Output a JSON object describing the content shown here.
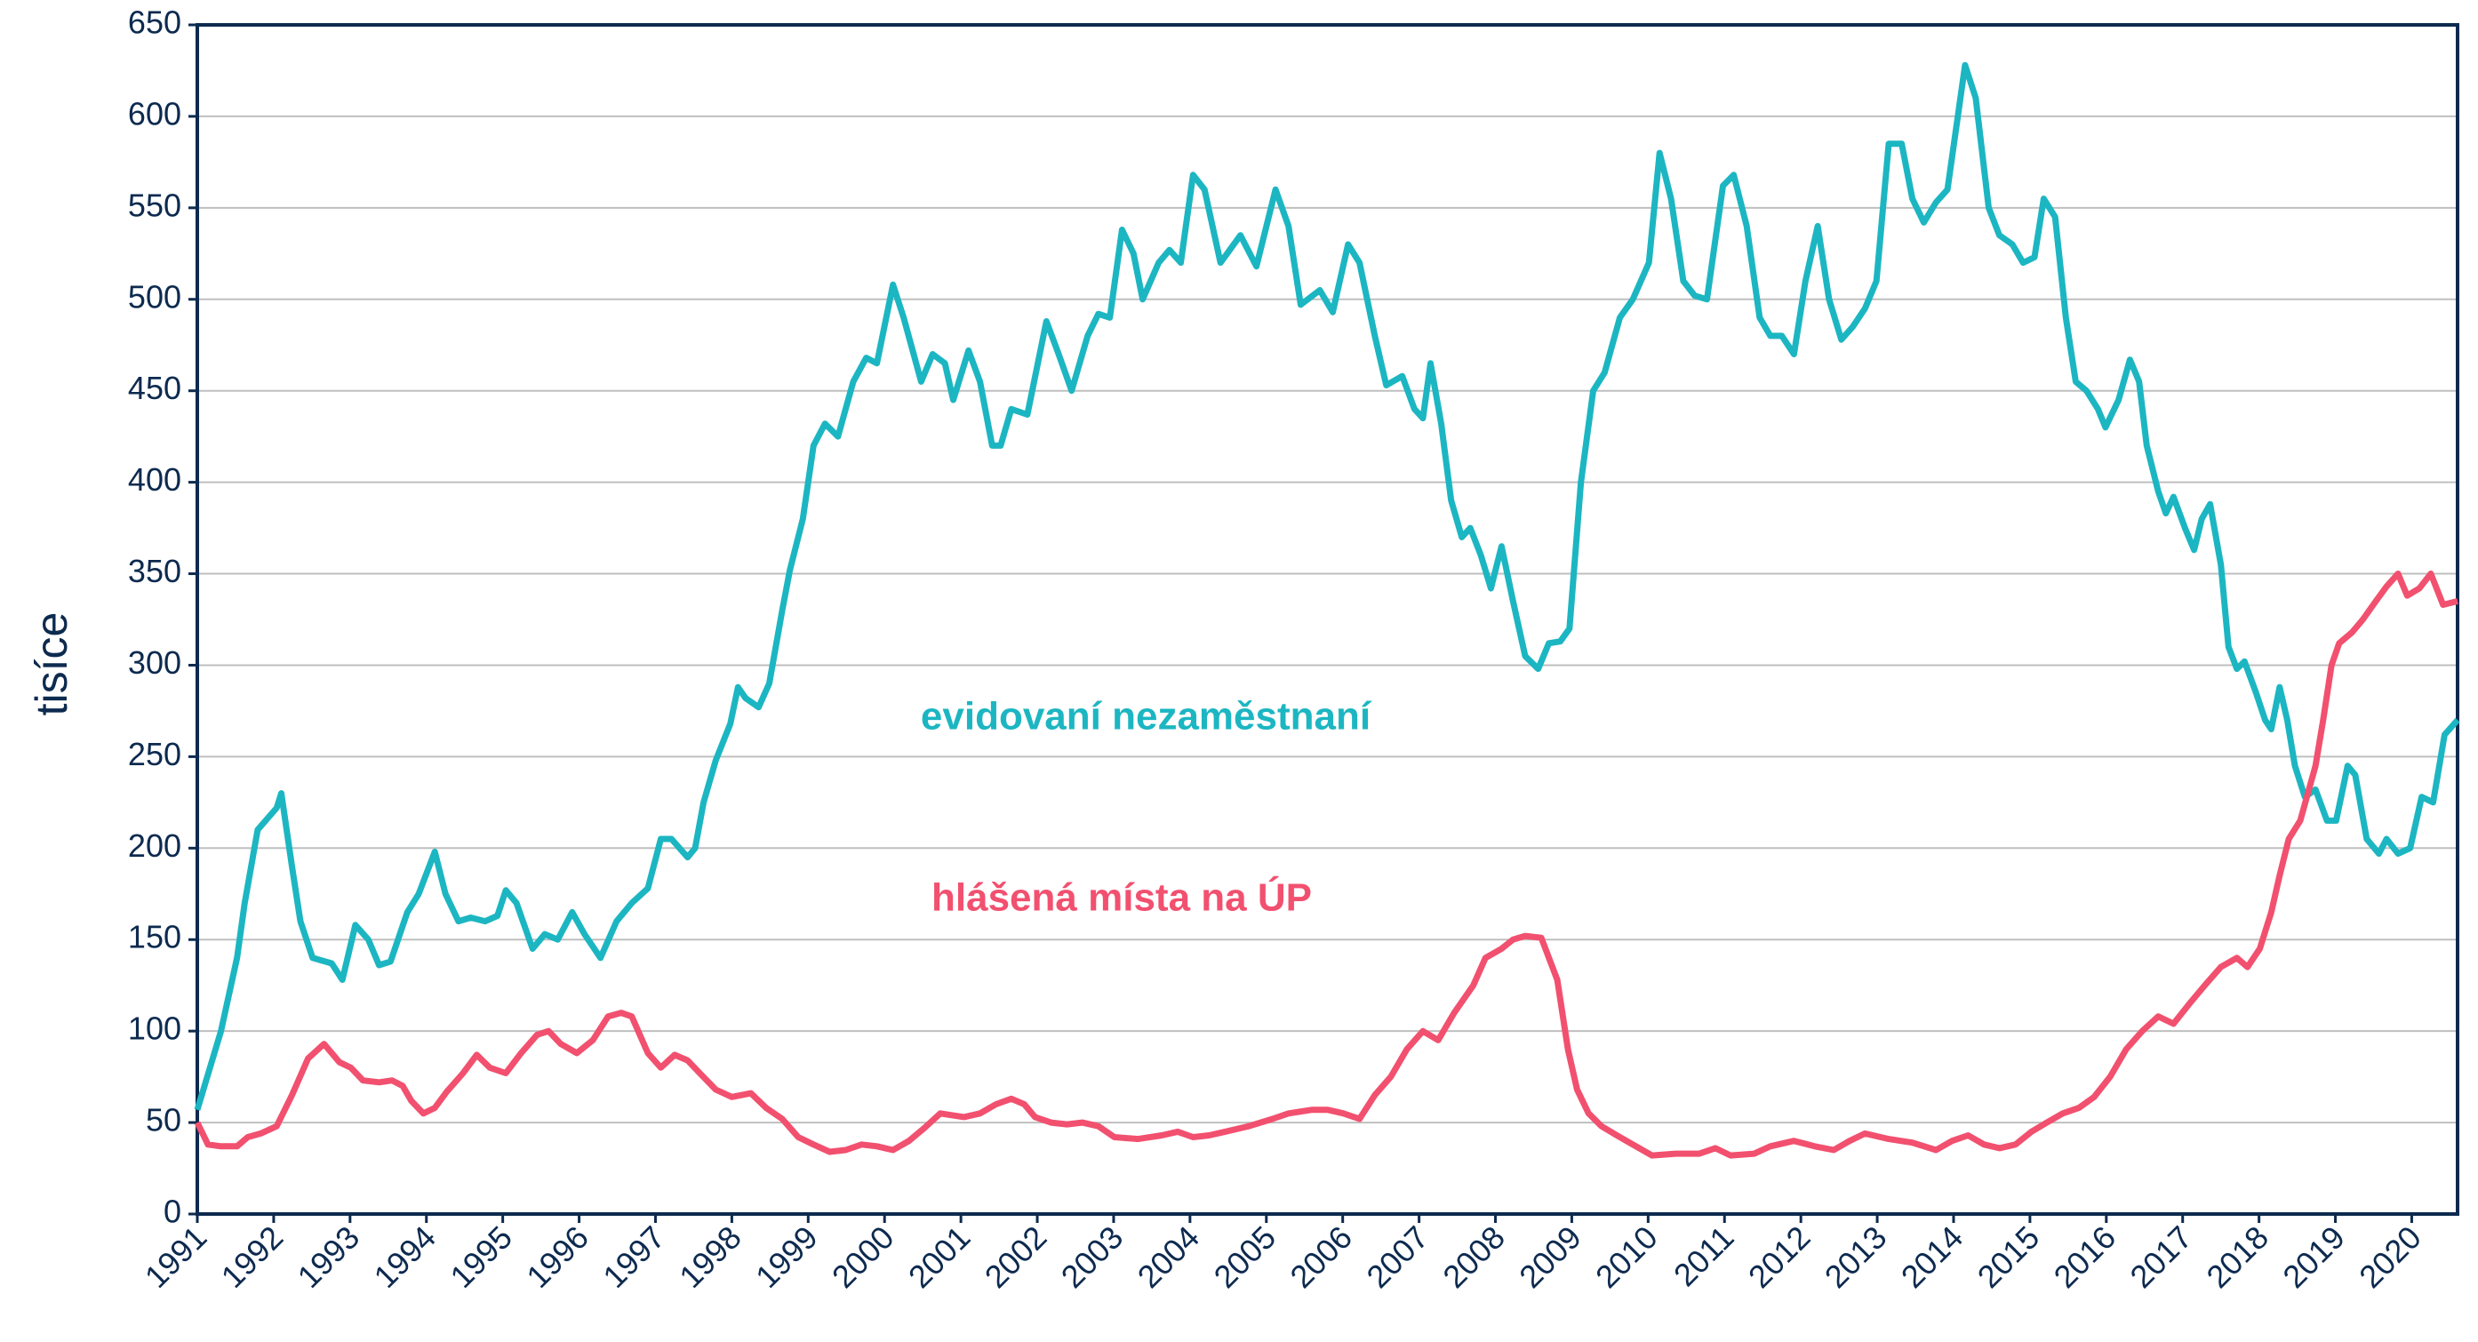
{
  "chart_data": {
    "type": "line",
    "y_label": "tisíce",
    "xlim": [
      1991,
      2020.6
    ],
    "xticks": [
      1991,
      1992,
      1993,
      1994,
      1995,
      1996,
      1997,
      1998,
      1999,
      2000,
      2001,
      2002,
      2003,
      2004,
      2005,
      2006,
      2007,
      2008,
      2009,
      2010,
      2011,
      2012,
      2013,
      2014,
      2015,
      2016,
      2017,
      2018,
      2019,
      2020
    ],
    "ylim": [
      0,
      650
    ],
    "yticks": [
      0,
      50,
      100,
      150,
      200,
      250,
      300,
      350,
      400,
      450,
      500,
      550,
      600,
      650
    ],
    "grid": true,
    "series": [
      {
        "name": "evidovaní nezaměstnaní",
        "color": "#1cb6c2",
        "x": [
          1991.0,
          1991.31,
          1991.52,
          1991.62,
          1991.79,
          1992.04,
          1992.1,
          1992.24,
          1992.35,
          1992.51,
          1992.76,
          1992.9,
          1993.07,
          1993.24,
          1993.38,
          1993.53,
          1993.75,
          1993.9,
          1994.11,
          1994.25,
          1994.42,
          1994.58,
          1994.77,
          1994.93,
          1995.04,
          1995.18,
          1995.39,
          1995.55,
          1995.72,
          1995.91,
          1996.07,
          1996.28,
          1996.49,
          1996.69,
          1996.9,
          1997.07,
          1997.21,
          1997.42,
          1997.52,
          1997.63,
          1997.79,
          1997.98,
          1998.08,
          1998.18,
          1998.35,
          1998.49,
          1998.66,
          1998.76,
          1998.93,
          1999.07,
          1999.22,
          1999.39,
          1999.59,
          1999.76,
          1999.9,
          2000.11,
          2000.25,
          2000.48,
          2000.63,
          2000.79,
          2000.9,
          2001.1,
          2001.25,
          2001.41,
          2001.52,
          2001.66,
          2001.87,
          2002.12,
          2002.28,
          2002.45,
          2002.66,
          2002.8,
          2002.95,
          2003.11,
          2003.26,
          2003.38,
          2003.59,
          2003.73,
          2003.88,
          2004.04,
          2004.19,
          2004.4,
          2004.66,
          2004.87,
          2005.12,
          2005.29,
          2005.45,
          2005.7,
          2005.87,
          2006.07,
          2006.22,
          2006.42,
          2006.57,
          2006.78,
          2006.94,
          2007.05,
          2007.15,
          2007.29,
          2007.42,
          2007.56,
          2007.67,
          2007.81,
          2007.94,
          2008.08,
          2008.23,
          2008.39,
          2008.56,
          2008.7,
          2008.85,
          2008.97,
          2009.12,
          2009.28,
          2009.43,
          2009.63,
          2009.8,
          2010.01,
          2010.15,
          2010.3,
          2010.46,
          2010.61,
          2010.77,
          2010.98,
          2011.12,
          2011.29,
          2011.46,
          2011.6,
          2011.75,
          2011.91,
          2012.06,
          2012.22,
          2012.37,
          2012.53,
          2012.68,
          2012.84,
          2012.99,
          2013.15,
          2013.32,
          2013.46,
          2013.61,
          2013.77,
          2013.92,
          2014.15,
          2014.29,
          2014.46,
          2014.6,
          2014.77,
          2014.91,
          2015.06,
          2015.18,
          2015.33,
          2015.47,
          2015.6,
          2015.74,
          2015.89,
          2015.99,
          2016.16,
          2016.31,
          2016.43,
          2016.53,
          2016.68,
          2016.78,
          2016.88,
          2017.03,
          2017.15,
          2017.25,
          2017.36,
          2017.5,
          2017.6,
          2017.71,
          2017.81,
          2017.96,
          2018.08,
          2018.16,
          2018.27,
          2018.37,
          2018.47,
          2018.6,
          2018.74,
          2018.89,
          2019.01,
          2019.16,
          2019.26,
          2019.41,
          2019.57,
          2019.67,
          2019.82,
          2019.98,
          2020.13,
          2020.28,
          2020.43,
          2020.6
        ],
        "values": [
          57,
          100,
          140,
          170,
          210,
          222,
          230,
          190,
          160,
          140,
          137,
          128,
          158,
          150,
          136,
          138,
          165,
          175,
          198,
          175,
          160,
          162,
          160,
          163,
          177,
          170,
          145,
          153,
          150,
          165,
          153,
          140,
          160,
          170,
          178,
          205,
          205,
          195,
          200,
          225,
          248,
          268,
          288,
          282,
          277,
          290,
          330,
          352,
          380,
          420,
          432,
          425,
          455,
          468,
          465,
          508,
          490,
          455,
          470,
          465,
          445,
          472,
          455,
          420,
          420,
          440,
          437,
          488,
          470,
          450,
          480,
          492,
          490,
          538,
          525,
          500,
          520,
          527,
          520,
          568,
          560,
          520,
          535,
          518,
          560,
          540,
          497,
          505,
          493,
          530,
          520,
          480,
          453,
          458,
          440,
          435,
          465,
          432,
          390,
          370,
          375,
          360,
          342,
          365,
          335,
          305,
          298,
          312,
          313,
          320,
          400,
          450,
          460,
          490,
          500,
          520,
          580,
          555,
          510,
          502,
          500,
          562,
          568,
          540,
          490,
          480,
          480,
          470,
          510,
          540,
          500,
          478,
          485,
          495,
          510,
          585,
          585,
          555,
          542,
          553,
          560,
          628,
          610,
          550,
          535,
          530,
          520,
          523,
          555,
          545,
          490,
          455,
          450,
          440,
          430,
          445,
          467,
          455,
          420,
          395,
          383,
          392,
          375,
          363,
          380,
          388,
          355,
          310,
          298,
          302,
          285,
          270,
          265,
          288,
          270,
          245,
          228,
          232,
          215,
          215,
          245,
          240,
          205,
          197,
          205,
          197,
          200,
          228,
          225,
          262,
          270
        ]
      },
      {
        "name": "hlášená místa na ÚP",
        "color": "#f2506f",
        "x": [
          1991.0,
          1991.14,
          1991.31,
          1991.52,
          1991.66,
          1991.83,
          1992.04,
          1992.24,
          1992.45,
          1992.66,
          1992.86,
          1993.01,
          1993.17,
          1993.38,
          1993.55,
          1993.69,
          1993.8,
          1993.96,
          1994.11,
          1994.27,
          1994.48,
          1994.66,
          1994.83,
          1995.04,
          1995.24,
          1995.45,
          1995.6,
          1995.76,
          1995.97,
          1996.18,
          1996.38,
          1996.55,
          1996.69,
          1996.9,
          1997.07,
          1997.25,
          1997.42,
          1997.58,
          1997.79,
          1998.0,
          1998.25,
          1998.45,
          1998.66,
          1998.87,
          1999.07,
          1999.28,
          1999.49,
          1999.7,
          1999.9,
          2000.11,
          2000.32,
          2000.52,
          2000.73,
          2001.04,
          2001.25,
          2001.46,
          2001.66,
          2001.83,
          2001.97,
          2002.18,
          2002.39,
          2002.59,
          2002.8,
          2003.01,
          2003.32,
          2003.63,
          2003.84,
          2004.04,
          2004.25,
          2004.46,
          2004.77,
          2005.08,
          2005.29,
          2005.6,
          2005.8,
          2006.01,
          2006.22,
          2006.42,
          2006.63,
          2006.84,
          2007.05,
          2007.25,
          2007.46,
          2007.71,
          2007.87,
          2008.08,
          2008.23,
          2008.39,
          2008.6,
          2008.81,
          2008.95,
          2009.07,
          2009.22,
          2009.39,
          2009.59,
          2009.8,
          2010.05,
          2010.36,
          2010.67,
          2010.88,
          2011.08,
          2011.39,
          2011.6,
          2011.91,
          2012.18,
          2012.43,
          2012.64,
          2012.84,
          2013.15,
          2013.46,
          2013.77,
          2013.98,
          2014.19,
          2014.4,
          2014.6,
          2014.81,
          2015.02,
          2015.22,
          2015.43,
          2015.64,
          2015.84,
          2016.05,
          2016.26,
          2016.47,
          2016.68,
          2016.88,
          2017.09,
          2017.29,
          2017.5,
          2017.71,
          2017.85,
          2018.01,
          2018.16,
          2018.27,
          2018.39,
          2018.54,
          2018.64,
          2018.74,
          2018.84,
          2018.95,
          2019.05,
          2019.22,
          2019.36,
          2019.53,
          2019.67,
          2019.82,
          2019.94,
          2020.1,
          2020.25,
          2020.41,
          2020.6
        ],
        "values": [
          50,
          38,
          37,
          37,
          42,
          44,
          48,
          65,
          85,
          93,
          83,
          80,
          73,
          72,
          73,
          70,
          62,
          55,
          58,
          67,
          77,
          87,
          80,
          77,
          88,
          98,
          100,
          93,
          88,
          95,
          108,
          110,
          108,
          88,
          80,
          87,
          84,
          77,
          68,
          64,
          66,
          58,
          52,
          42,
          38,
          34,
          35,
          38,
          37,
          35,
          40,
          47,
          55,
          53,
          55,
          60,
          63,
          60,
          53,
          50,
          49,
          50,
          48,
          42,
          41,
          43,
          45,
          42,
          43,
          45,
          48,
          52,
          55,
          57,
          57,
          55,
          52,
          65,
          75,
          90,
          100,
          95,
          110,
          125,
          140,
          145,
          150,
          152,
          151,
          128,
          90,
          68,
          55,
          48,
          43,
          38,
          32,
          33,
          33,
          36,
          32,
          33,
          37,
          40,
          37,
          35,
          40,
          44,
          41,
          39,
          35,
          40,
          43,
          38,
          36,
          38,
          45,
          50,
          55,
          58,
          64,
          75,
          90,
          100,
          108,
          104,
          115,
          125,
          135,
          140,
          135,
          145,
          165,
          185,
          205,
          215,
          230,
          245,
          270,
          300,
          312,
          318,
          325,
          335,
          343,
          350,
          338,
          342,
          350,
          333,
          335
        ]
      }
    ]
  }
}
